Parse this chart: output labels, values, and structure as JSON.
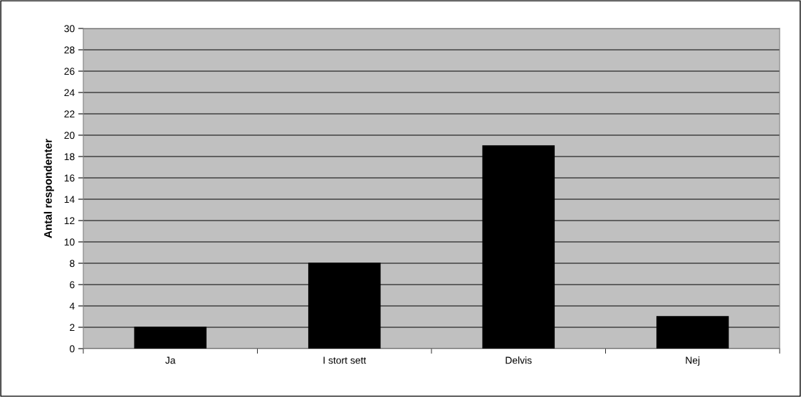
{
  "chart_data": {
    "type": "bar",
    "ylabel": "Antal respondenter",
    "categories": [
      "Ja",
      "I stort sett",
      "Delvis",
      "Nej"
    ],
    "values": [
      2,
      8,
      19,
      3
    ],
    "color": "#000000",
    "ylim": [
      0,
      30
    ],
    "yticks": [
      0,
      2,
      4,
      6,
      8,
      10,
      12,
      14,
      16,
      18,
      20,
      22,
      24,
      26,
      28,
      30
    ],
    "grid": "y"
  }
}
